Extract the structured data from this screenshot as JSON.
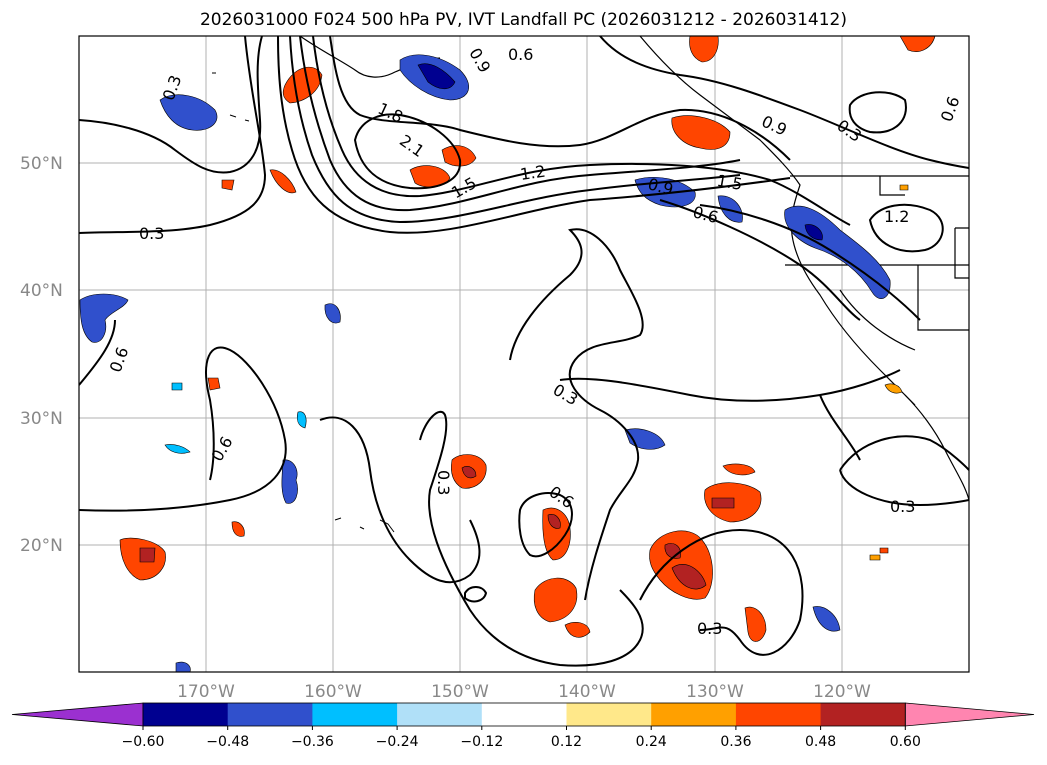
{
  "title": "2026031000 F024 500 hPa PV, IVT Landfall PC (2026031212 - 2026031412)",
  "map": {
    "lat_labels": [
      "50°N",
      "40°N",
      "30°N",
      "20°N"
    ],
    "lon_labels": [
      "170°W",
      "160°W",
      "150°W",
      "140°W",
      "130°W",
      "120°W"
    ],
    "contour_labels": [
      "0.3",
      "0.9",
      "0.6",
      "1.8",
      "2.1",
      "1.5",
      "1.2",
      "0.9",
      "1.5",
      "0.9",
      "0.6",
      "0.3",
      "0.6",
      "1.2",
      "0.3",
      "0.6",
      "0.6",
      "0.3",
      "0.3",
      "0.6",
      "0.3",
      "0.3"
    ]
  },
  "colorbar": {
    "ticks": [
      "−0.60",
      "−0.48",
      "−0.36",
      "−0.24",
      "−0.12",
      "0.12",
      "0.24",
      "0.36",
      "0.48",
      "0.60"
    ],
    "colors": [
      "#9b30d0",
      "#000090",
      "#3050cc",
      "#00bfff",
      "#b0e0f8",
      "#ffffff",
      "#ffe88a",
      "#ffa000",
      "#ff4500",
      "#b22222",
      "#ff85b0"
    ]
  }
}
